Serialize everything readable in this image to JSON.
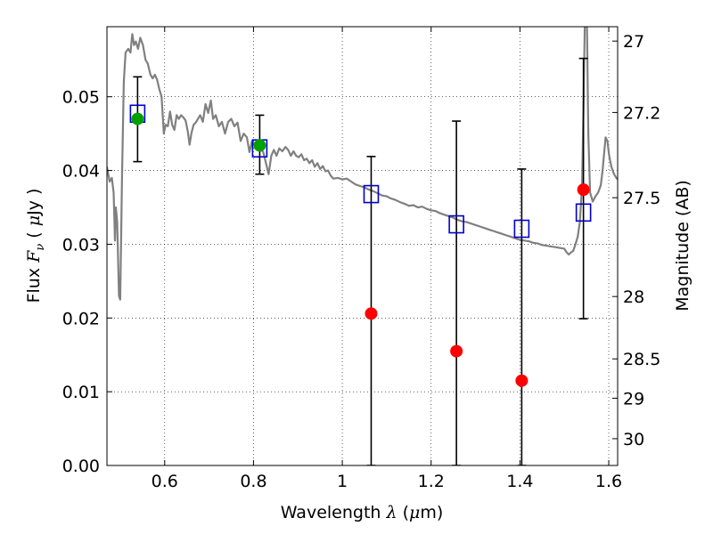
{
  "chart_data": {
    "type": "scatter",
    "xlabel": {
      "prefix": "Wavelength  ",
      "symbol": "λ",
      "suffix": " (",
      "mu": "μ",
      "unit": "m)"
    },
    "ylabel": {
      "prefix": "Flux  ",
      "symbol": "F",
      "sub": "ν",
      "suffix": "  ( ",
      "mu": "μ",
      "unit": "Jy )"
    },
    "y2label": "Magnitude (AB)",
    "xlim": [
      0.47,
      1.62
    ],
    "ylim": [
      0.0,
      0.0595
    ],
    "grid": true,
    "x_ticks": [
      {
        "value": 0.6,
        "label": "0.6"
      },
      {
        "value": 0.8,
        "label": "0.8"
      },
      {
        "value": 1.0,
        "label": "1"
      },
      {
        "value": 1.2,
        "label": "1.2"
      },
      {
        "value": 1.4,
        "label": "1.4"
      },
      {
        "value": 1.6,
        "label": "1.6"
      }
    ],
    "y_ticks": [
      {
        "value": 0.0,
        "label": "0.00"
      },
      {
        "value": 0.01,
        "label": "0.01"
      },
      {
        "value": 0.02,
        "label": "0.02"
      },
      {
        "value": 0.03,
        "label": "0.03"
      },
      {
        "value": 0.04,
        "label": "0.04"
      },
      {
        "value": 0.05,
        "label": "0.05"
      }
    ],
    "y2_ticks": [
      {
        "mag": 27.0,
        "label": "27"
      },
      {
        "mag": 27.2,
        "label": "27.2"
      },
      {
        "mag": 27.5,
        "label": "27.5"
      },
      {
        "mag": 28.0,
        "label": "28"
      },
      {
        "mag": 28.5,
        "label": "28.5"
      },
      {
        "mag": 29.0,
        "label": "29"
      },
      {
        "mag": 30.0,
        "label": "30"
      }
    ],
    "colors": {
      "model": "#808080",
      "square": "#0000cc",
      "green": "#00a000",
      "red": "#ff0000",
      "errorbar": "#000000",
      "grid": "#000000"
    },
    "series": [
      {
        "name": "model_sed",
        "kind": "line",
        "points": [
          [
            0.47,
            0.0405
          ],
          [
            0.476,
            0.0385
          ],
          [
            0.481,
            0.039
          ],
          [
            0.485,
            0.037
          ],
          [
            0.488,
            0.0305
          ],
          [
            0.49,
            0.035
          ],
          [
            0.493,
            0.033
          ],
          [
            0.497,
            0.023
          ],
          [
            0.5,
            0.0225
          ],
          [
            0.504,
            0.039
          ],
          [
            0.508,
            0.052
          ],
          [
            0.512,
            0.056
          ],
          [
            0.518,
            0.0565
          ],
          [
            0.523,
            0.056
          ],
          [
            0.527,
            0.0585
          ],
          [
            0.531,
            0.057
          ],
          [
            0.535,
            0.0575
          ],
          [
            0.54,
            0.0565
          ],
          [
            0.545,
            0.058
          ],
          [
            0.551,
            0.057
          ],
          [
            0.557,
            0.055
          ],
          [
            0.562,
            0.0545
          ],
          [
            0.568,
            0.053
          ],
          [
            0.573,
            0.0525
          ],
          [
            0.578,
            0.053
          ],
          [
            0.583,
            0.0523
          ],
          [
            0.588,
            0.051
          ],
          [
            0.593,
            0.05
          ],
          [
            0.598,
            0.045
          ],
          [
            0.602,
            0.0462
          ],
          [
            0.607,
            0.046
          ],
          [
            0.612,
            0.048
          ],
          [
            0.617,
            0.0462
          ],
          [
            0.622,
            0.0455
          ],
          [
            0.627,
            0.0475
          ],
          [
            0.632,
            0.047
          ],
          [
            0.637,
            0.0475
          ],
          [
            0.642,
            0.0472
          ],
          [
            0.647,
            0.0468
          ],
          [
            0.652,
            0.0453
          ],
          [
            0.656,
            0.0435
          ],
          [
            0.66,
            0.045
          ],
          [
            0.665,
            0.0462
          ],
          [
            0.67,
            0.0465
          ],
          [
            0.675,
            0.047
          ],
          [
            0.68,
            0.0475
          ],
          [
            0.686,
            0.0466
          ],
          [
            0.692,
            0.049
          ],
          [
            0.698,
            0.0478
          ],
          [
            0.704,
            0.0495
          ],
          [
            0.709,
            0.047
          ],
          [
            0.715,
            0.0475
          ],
          [
            0.722,
            0.046
          ],
          [
            0.729,
            0.0466
          ],
          [
            0.736,
            0.045
          ],
          [
            0.743,
            0.0466
          ],
          [
            0.75,
            0.047
          ],
          [
            0.757,
            0.046
          ],
          [
            0.764,
            0.0465
          ],
          [
            0.771,
            0.044
          ],
          [
            0.778,
            0.045
          ],
          [
            0.785,
            0.0445
          ],
          [
            0.791,
            0.0425
          ],
          [
            0.797,
            0.044
          ],
          [
            0.803,
            0.0435
          ],
          [
            0.81,
            0.0432
          ],
          [
            0.817,
            0.0428
          ],
          [
            0.822,
            0.0425
          ],
          [
            0.828,
            0.041
          ],
          [
            0.834,
            0.0395
          ],
          [
            0.84,
            0.042
          ],
          [
            0.846,
            0.0428
          ],
          [
            0.852,
            0.042
          ],
          [
            0.858,
            0.043
          ],
          [
            0.865,
            0.0426
          ],
          [
            0.872,
            0.0432
          ],
          [
            0.878,
            0.0428
          ],
          [
            0.884,
            0.042
          ],
          [
            0.89,
            0.0426
          ],
          [
            0.896,
            0.042
          ],
          [
            0.902,
            0.0418
          ],
          [
            0.908,
            0.0422
          ],
          [
            0.914,
            0.0414
          ],
          [
            0.92,
            0.0416
          ],
          [
            0.926,
            0.041
          ],
          [
            0.932,
            0.0414
          ],
          [
            0.938,
            0.0405
          ],
          [
            0.944,
            0.041
          ],
          [
            0.95,
            0.0402
          ],
          [
            0.956,
            0.0406
          ],
          [
            0.962,
            0.0399
          ],
          [
            0.968,
            0.04
          ],
          [
            0.974,
            0.0393
          ],
          [
            0.98,
            0.0389
          ],
          [
            0.99,
            0.039
          ],
          [
            1.0,
            0.0388
          ],
          [
            1.01,
            0.0389
          ],
          [
            1.02,
            0.0385
          ],
          [
            1.03,
            0.0381
          ],
          [
            1.04,
            0.0379
          ],
          [
            1.05,
            0.0377
          ],
          [
            1.06,
            0.0374
          ],
          [
            1.07,
            0.0372
          ],
          [
            1.08,
            0.0369
          ],
          [
            1.09,
            0.0366
          ],
          [
            1.1,
            0.0365
          ],
          [
            1.11,
            0.0362
          ],
          [
            1.12,
            0.036
          ],
          [
            1.13,
            0.0357
          ],
          [
            1.14,
            0.0355
          ],
          [
            1.15,
            0.0352
          ],
          [
            1.16,
            0.0353
          ],
          [
            1.17,
            0.035
          ],
          [
            1.18,
            0.0351
          ],
          [
            1.19,
            0.0348
          ],
          [
            1.2,
            0.0346
          ],
          [
            1.21,
            0.0345
          ],
          [
            1.22,
            0.0342
          ],
          [
            1.23,
            0.034
          ],
          [
            1.24,
            0.0338
          ],
          [
            1.25,
            0.0336
          ],
          [
            1.26,
            0.0333
          ],
          [
            1.27,
            0.0331
          ],
          [
            1.28,
            0.033
          ],
          [
            1.29,
            0.0328
          ],
          [
            1.3,
            0.0326
          ],
          [
            1.31,
            0.0324
          ],
          [
            1.32,
            0.0322
          ],
          [
            1.33,
            0.032
          ],
          [
            1.34,
            0.0318
          ],
          [
            1.35,
            0.0316
          ],
          [
            1.36,
            0.0314
          ],
          [
            1.37,
            0.0312
          ],
          [
            1.38,
            0.031
          ],
          [
            1.39,
            0.0308
          ],
          [
            1.4,
            0.0306
          ],
          [
            1.41,
            0.0305
          ],
          [
            1.42,
            0.0304
          ],
          [
            1.43,
            0.0302
          ],
          [
            1.44,
            0.0301
          ],
          [
            1.45,
            0.0299
          ],
          [
            1.46,
            0.0298
          ],
          [
            1.47,
            0.0297
          ],
          [
            1.48,
            0.0296
          ],
          [
            1.49,
            0.0295
          ],
          [
            1.5,
            0.0294
          ],
          [
            1.505,
            0.0289
          ],
          [
            1.51,
            0.0286
          ],
          [
            1.515,
            0.0289
          ],
          [
            1.52,
            0.0291
          ],
          [
            1.525,
            0.03
          ],
          [
            1.53,
            0.031
          ],
          [
            1.535,
            0.033
          ],
          [
            1.54,
            0.038
          ],
          [
            1.543,
            0.048
          ],
          [
            1.546,
            0.0595
          ],
          [
            1.551,
            0.0595
          ],
          [
            1.554,
            0.045
          ],
          [
            1.558,
            0.037
          ],
          [
            1.564,
            0.0358
          ],
          [
            1.57,
            0.0365
          ],
          [
            1.576,
            0.037
          ],
          [
            1.582,
            0.038
          ],
          [
            1.586,
            0.04
          ],
          [
            1.589,
            0.042
          ],
          [
            1.593,
            0.0445
          ],
          [
            1.597,
            0.044
          ],
          [
            1.601,
            0.042
          ],
          [
            1.606,
            0.0405
          ],
          [
            1.612,
            0.0395
          ],
          [
            1.617,
            0.039
          ],
          [
            1.62,
            0.0388
          ]
        ]
      },
      {
        "name": "model_photometry",
        "kind": "open-square",
        "points": [
          {
            "x": 0.539,
            "y": 0.0477,
            "yerr_lo": 0.0412,
            "yerr_hi": 0.0527
          },
          {
            "x": 0.814,
            "y": 0.043,
            "yerr_lo": 0.0395,
            "yerr_hi": 0.0475
          },
          {
            "x": 1.065,
            "y": 0.0368,
            "yerr_lo": 0.0,
            "yerr_hi": 0.0419
          },
          {
            "x": 1.257,
            "y": 0.0327,
            "yerr_lo": 0.0,
            "yerr_hi": 0.0467
          },
          {
            "x": 1.404,
            "y": 0.0321,
            "yerr_lo": 0.0,
            "yerr_hi": 0.0402
          },
          {
            "x": 1.543,
            "y": 0.0343,
            "yerr_lo": 0.0199,
            "yerr_hi": 0.0552
          }
        ]
      },
      {
        "name": "detections",
        "kind": "green-dot",
        "points": [
          [
            0.539,
            0.047
          ],
          [
            0.814,
            0.0434
          ]
        ]
      },
      {
        "name": "observed_flux",
        "kind": "red-dot",
        "points": [
          [
            1.065,
            0.0206
          ],
          [
            1.257,
            0.0155
          ],
          [
            1.404,
            0.0115
          ],
          [
            1.543,
            0.0374
          ]
        ]
      }
    ]
  }
}
